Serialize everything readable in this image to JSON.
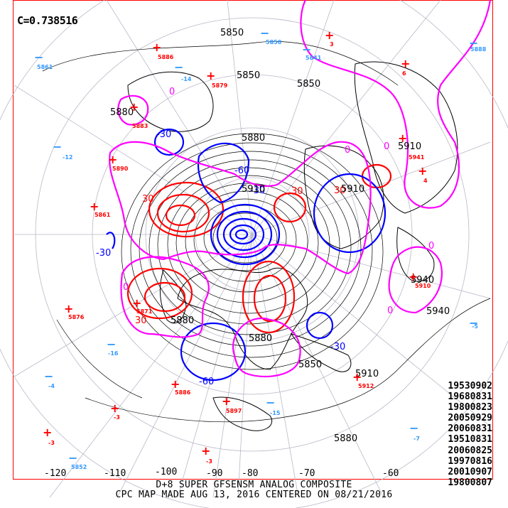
{
  "header": {
    "correlation": "C=0.738516"
  },
  "analog_dates": [
    "19530902",
    "19680831",
    "19800823",
    "20050929",
    "20060831",
    "19510831",
    "20060825",
    "19970816",
    "20010907",
    "19800807"
  ],
  "footer": {
    "line1": "D+8 SUPER GFSENSM ANALOG COMPOSITE",
    "line2": "CPC MAP MADE AUG 13, 2016 CENTERED ON 08/21/2016"
  },
  "longitude_labels": [
    "-120",
    "-110",
    "-100",
    "-90",
    "-80",
    "-70",
    "-60"
  ],
  "height_contour_labels": [
    "5850",
    "5880",
    "5910",
    "5940",
    "5880",
    "5850",
    "5880",
    "5910",
    "5940",
    "5850",
    "5880",
    "5910",
    "5850",
    "5910",
    "5880"
  ],
  "anomaly_contour_labels": [
    "30",
    "30",
    "30",
    "30",
    "-30",
    "-30",
    "-60",
    "-60",
    "-30",
    "-30",
    "0",
    "0",
    "0",
    "0",
    "0",
    "0"
  ],
  "colors": {
    "positive_anomaly": "#ff0000",
    "negative_anomaly": "#0000ff",
    "zero_contour": "#ff00ff",
    "height_contour": "#000000",
    "station_plus": "#ff0000",
    "station_minus": "#3399ff",
    "frame": "#ff0000"
  },
  "station_markers": [
    {
      "sign": "+",
      "value": "5886"
    },
    {
      "sign": "+",
      "value": "5879"
    },
    {
      "sign": "+",
      "value": "5890"
    },
    {
      "sign": "+",
      "value": "5861"
    },
    {
      "sign": "+",
      "value": "5883"
    },
    {
      "sign": "+",
      "value": "5876"
    },
    {
      "sign": "+",
      "value": "5886"
    },
    {
      "sign": "+",
      "value": "5897"
    },
    {
      "sign": "+",
      "value": "5912"
    },
    {
      "sign": "+",
      "value": "5941"
    },
    {
      "sign": "+",
      "value": "5910"
    },
    {
      "sign": "+",
      "value": "5871"
    },
    {
      "sign": "+",
      "value": "3"
    },
    {
      "sign": "+",
      "value": "6"
    },
    {
      "sign": "+",
      "value": "4"
    },
    {
      "sign": "+",
      "value": "-3"
    },
    {
      "sign": "+",
      "value": "-3"
    },
    {
      "sign": "+",
      "value": "-3"
    },
    {
      "sign": "-",
      "value": "5861"
    },
    {
      "sign": "-",
      "value": "5850"
    },
    {
      "sign": "-",
      "value": "-14"
    },
    {
      "sign": "-",
      "value": "-12"
    },
    {
      "sign": "-",
      "value": "5841"
    },
    {
      "sign": "-",
      "value": "5888"
    },
    {
      "sign": "-",
      "value": "-16"
    },
    {
      "sign": "-",
      "value": "-4"
    },
    {
      "sign": "-",
      "value": "5852"
    },
    {
      "sign": "-",
      "value": "-15"
    },
    {
      "sign": "-",
      "value": "-7"
    },
    {
      "sign": "-",
      "value": "-5"
    }
  ]
}
